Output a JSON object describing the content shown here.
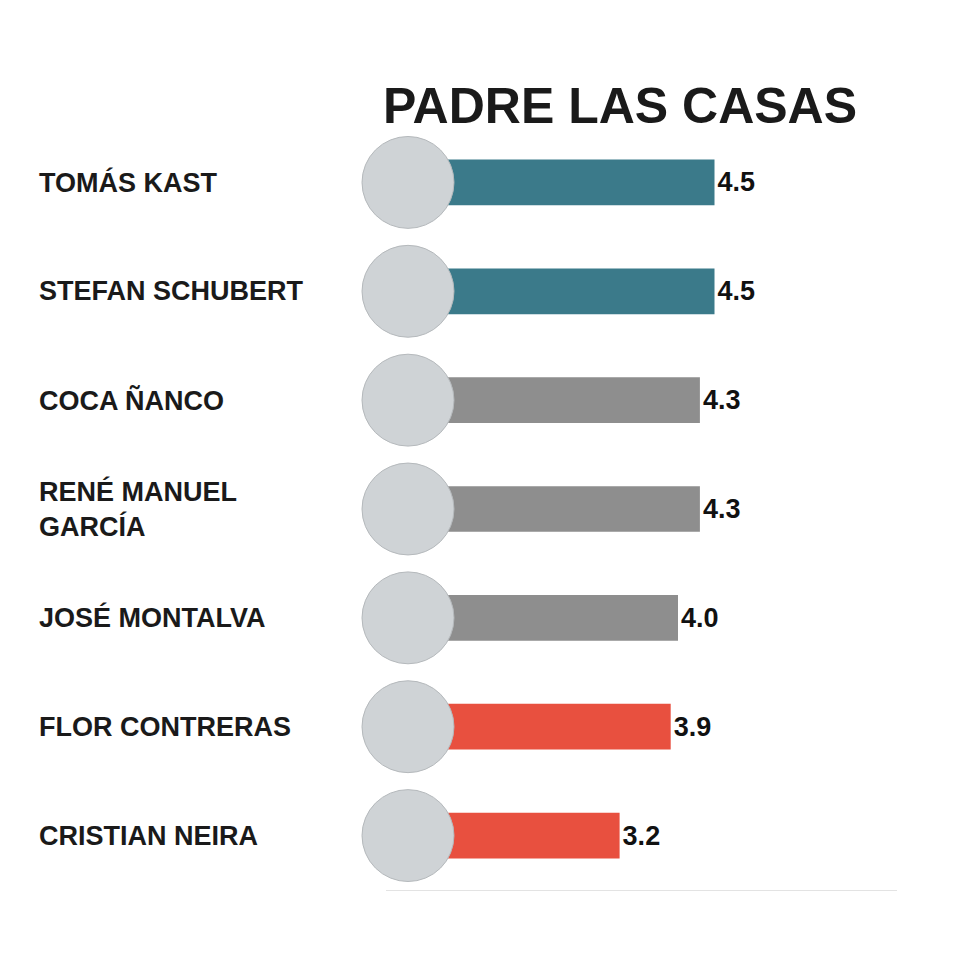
{
  "chart_data": {
    "type": "bar",
    "title": "PADRE LAS CASAS",
    "orientation": "horizontal",
    "categories": [
      "TOMÁS KAST",
      "STEFAN SCHUBERT",
      "COCA ÑANCO",
      "RENÉ MANUEL GARCÍA",
      "JOSÉ MONTALVA",
      "FLOR CONTRERAS",
      "CRISTIAN NEIRA"
    ],
    "values": [
      4.5,
      4.5,
      4.3,
      4.3,
      4.0,
      3.9,
      3.2
    ],
    "value_labels": [
      "4.5",
      "4.5",
      "4.3",
      "4.3",
      "4.0",
      "3.9",
      "3.2"
    ],
    "colors": [
      "#3b7a8a",
      "#3b7a8a",
      "#8e8e8e",
      "#8e8e8e",
      "#8e8e8e",
      "#e8503f",
      "#e8503f"
    ],
    "xlim": [
      0,
      7
    ],
    "data_labels": true,
    "tick_labels": false,
    "grid": false
  }
}
